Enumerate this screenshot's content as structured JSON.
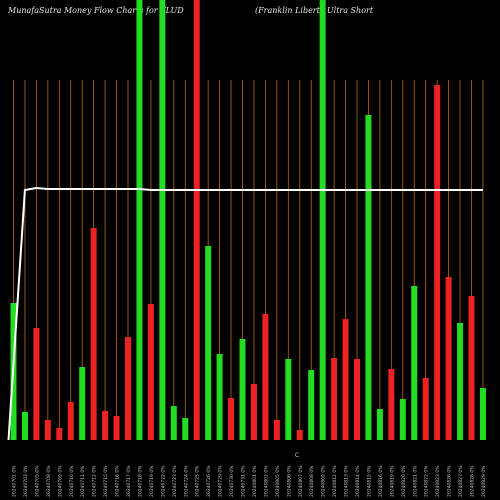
{
  "title_left": "MunafaSutra  Money Flow  Charts for FLUD",
  "title_right": "(Franklin  Liberty Ultra  Short",
  "bottom_marker": "C",
  "chart_data": {
    "type": "bar",
    "categories": [
      "20240702 0%",
      "20240703 0%",
      "20240705 0%",
      "20240708 0%",
      "20240709 0%",
      "20240710 0%",
      "20240711 0%",
      "20240712 0%",
      "20240715 0%",
      "20240716 0%",
      "20240717 0%",
      "20240718 0%",
      "20240719 0%",
      "20240722 0%",
      "20240723 0%",
      "20240724 0%",
      "20240725 0%",
      "20240726 0%",
      "20240729 0%",
      "20240730 0%",
      "20240731 0%",
      "20240801 0%",
      "20240802 0%",
      "20240805 0%",
      "20240806 0%",
      "20240807 0%",
      "20240808 0%",
      "20240809 0%",
      "20240812 0%",
      "20240813 0%",
      "20240814 0%",
      "20240815 0%",
      "20240816 0%",
      "20240819 0%",
      "20240820 0%",
      "20240821 0%",
      "20240822 0%",
      "20240823 0%",
      "20240826 0%",
      "20240827 0%",
      "20240828 0%",
      "20240829 0%"
    ],
    "values": [
      137,
      28,
      112,
      20,
      12,
      38,
      73,
      212,
      29,
      24,
      103,
      440,
      136,
      440,
      34,
      22,
      440,
      194,
      86,
      42,
      101,
      56,
      126,
      20,
      81,
      10,
      70,
      440,
      82,
      121,
      81,
      325,
      31,
      71,
      41,
      154,
      62,
      355,
      163,
      117,
      144,
      52
    ],
    "bar_colors": [
      "#22dd22",
      "#22dd22",
      "#ee2222",
      "#ee2222",
      "#ee2222",
      "#ee2222",
      "#22dd22",
      "#ee2222",
      "#ee2222",
      "#ee2222",
      "#ee2222",
      "#22dd22",
      "#ee2222",
      "#22dd22",
      "#22dd22",
      "#22dd22",
      "#ee2222",
      "#22dd22",
      "#22dd22",
      "#ee2222",
      "#22dd22",
      "#ee2222",
      "#ee2222",
      "#ee2222",
      "#22dd22",
      "#ee2222",
      "#22dd22",
      "#22dd22",
      "#ee2222",
      "#ee2222",
      "#ee2222",
      "#22dd22",
      "#22dd22",
      "#ee2222",
      "#22dd22",
      "#22dd22",
      "#ee2222",
      "#ee2222",
      "#ee2222",
      "#22dd22",
      "#ee2222",
      "#22dd22"
    ],
    "line_values": [
      0,
      250,
      252,
      251,
      251,
      251,
      251,
      251,
      251,
      251,
      251,
      251,
      250,
      250,
      250,
      250,
      250,
      250,
      250,
      250,
      250,
      250,
      250,
      250,
      250,
      250,
      250,
      250,
      250,
      250,
      250,
      250,
      250,
      250,
      250,
      250,
      250,
      250,
      250,
      250,
      250,
      250
    ],
    "ylim": [
      0,
      440
    ],
    "grid": true,
    "colors": {
      "background": "#000000",
      "grid": "#b86a10",
      "line": "#ffffff",
      "up": "#22dd22",
      "down": "#ee2222"
    }
  }
}
